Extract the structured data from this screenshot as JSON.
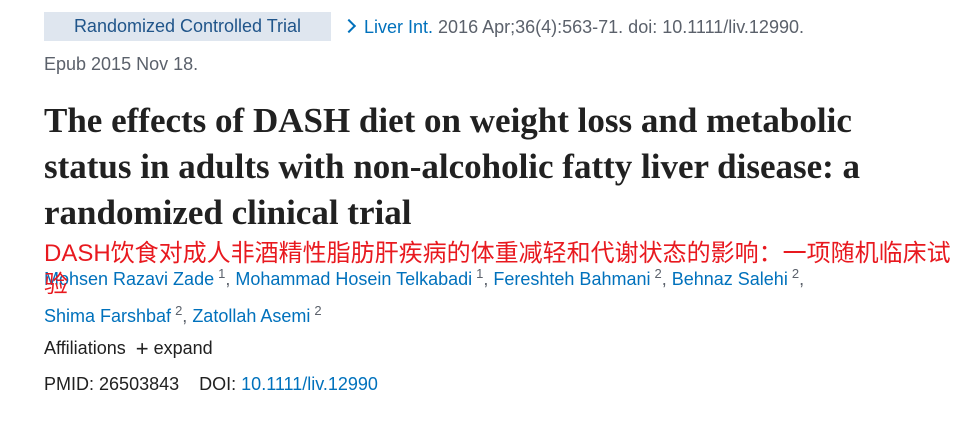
{
  "badge": "Randomized Controlled Trial",
  "citation": {
    "journal": "Liver Int.",
    "details": "2016 Apr;36(4):563-71. doi: 10.1111/liv.12990.",
    "epub": "Epub 2015 Nov 18."
  },
  "title": "The effects of DASH diet on weight loss and metabolic status in adults with non-alcoholic fatty liver disease: a randomized clinical trial",
  "translation": "DASH饮食对成人非酒精性脂肪肝疾病的体重减轻和代谢状态的影响：一项随机临床试验",
  "authors": [
    {
      "name": "Mohsen Razavi Zade",
      "affiliation": "1"
    },
    {
      "name": "Mohammad Hosein Telkabadi",
      "affiliation": "1"
    },
    {
      "name": "Fereshteh Bahmani",
      "affiliation": "2"
    },
    {
      "name": "Behnaz Salehi",
      "affiliation": "2"
    },
    {
      "name": "Shima Farshbaf",
      "affiliation": "2"
    },
    {
      "name": "Zatollah Asemi",
      "affiliation": "2"
    }
  ],
  "affiliations": {
    "label": "Affiliations",
    "toggle": "expand"
  },
  "identifiers": {
    "pmid_label": "PMID:",
    "pmid": "26503843",
    "doi_label": "DOI:",
    "doi": "10.1111/liv.12990"
  }
}
